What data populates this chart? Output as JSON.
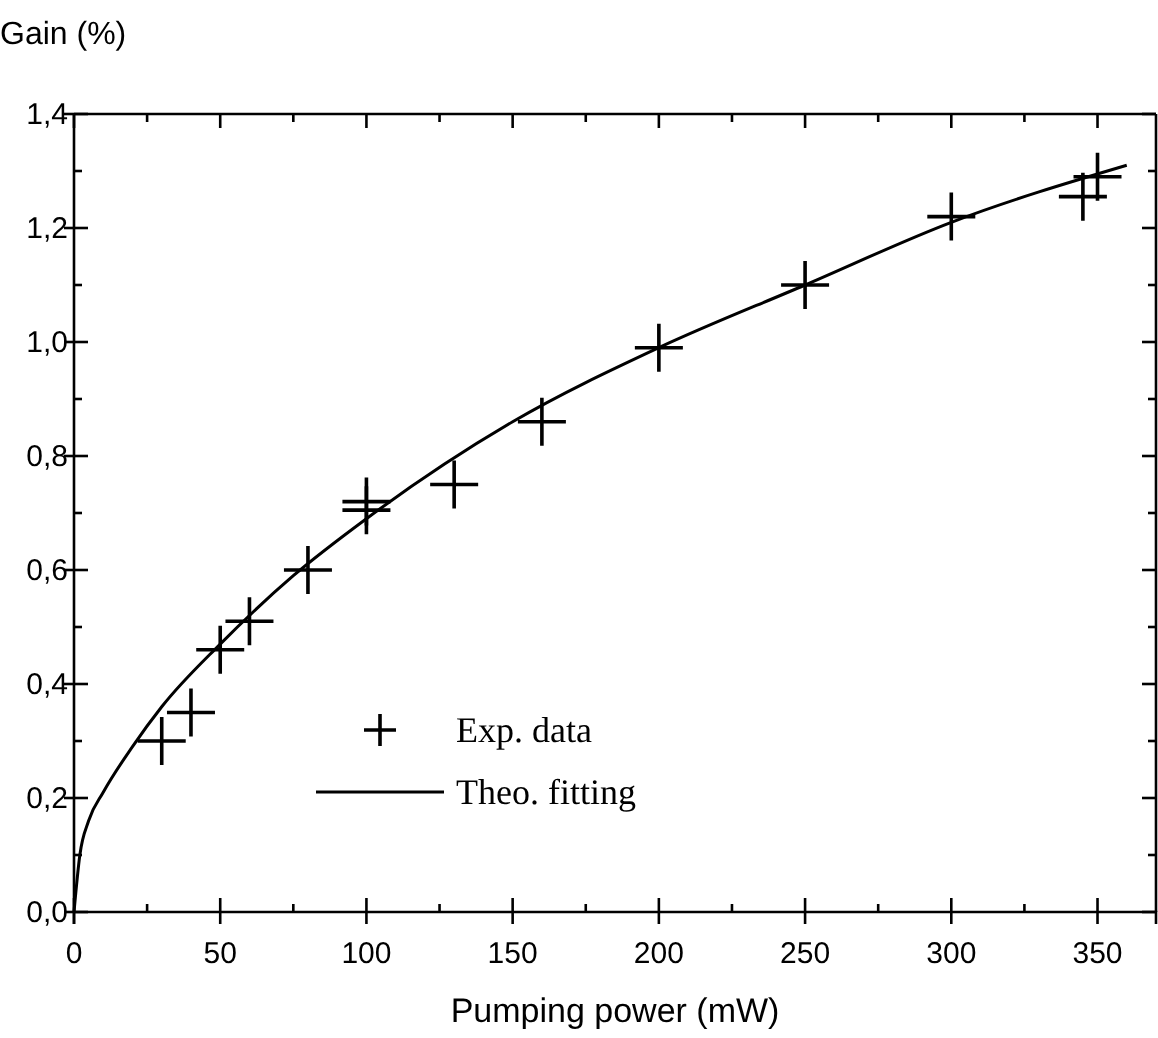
{
  "chart_data": {
    "type": "scatter",
    "ylabel": "Gain (%)",
    "xlabel": "Pumping power (mW)",
    "xlim": [
      0,
      370
    ],
    "ylim": [
      0,
      1.4
    ],
    "xticks": [
      0,
      {
        "value": 25,
        "label": null
      },
      50,
      {
        "value": 75,
        "label": null
      },
      100,
      {
        "value": 125,
        "label": null
      },
      150,
      {
        "value": 175,
        "label": null
      },
      200,
      {
        "value": 225,
        "label": null
      },
      250,
      {
        "value": 275,
        "label": null
      },
      300,
      {
        "value": 325,
        "label": null
      },
      350
    ],
    "yticks": [
      {
        "value": 0,
        "label": "0,0"
      },
      {
        "value": 0.1,
        "label": null
      },
      {
        "value": 0.2,
        "label": "0,2"
      },
      {
        "value": 0.3,
        "label": null
      },
      {
        "value": 0.4,
        "label": "0,4"
      },
      {
        "value": 0.5,
        "label": null
      },
      {
        "value": 0.6,
        "label": "0,6"
      },
      {
        "value": 0.7,
        "label": null
      },
      {
        "value": 0.8,
        "label": "0,8"
      },
      {
        "value": 0.9,
        "label": null
      },
      {
        "value": 1.0,
        "label": "1,0"
      },
      {
        "value": 1.1,
        "label": null
      },
      {
        "value": 1.2,
        "label": "1,2"
      },
      {
        "value": 1.3,
        "label": null
      },
      {
        "value": 1.4,
        "label": "1,4"
      }
    ],
    "legend": "bottom",
    "grid": false,
    "series": [
      {
        "name": "Exp. data",
        "marker": "cross",
        "color": "#000000",
        "x": [
          30,
          40,
          50,
          60,
          80,
          100,
          100,
          130,
          160,
          200,
          250,
          300,
          345,
          350
        ],
        "values": [
          0.3,
          0.35,
          0.46,
          0.51,
          0.6,
          0.72,
          0.705,
          0.75,
          0.86,
          0.99,
          1.1,
          1.22,
          1.255,
          1.29
        ]
      },
      {
        "name": "Theo. fitting",
        "type": "line",
        "color": "#000000",
        "x": [
          0,
          2,
          5,
          10,
          20,
          30,
          50,
          75,
          100,
          150,
          200,
          250,
          300,
          360
        ],
        "values": [
          0,
          0.1,
          0.16,
          0.21,
          0.29,
          0.36,
          0.47,
          0.59,
          0.69,
          0.86,
          0.99,
          1.1,
          1.21,
          1.31
        ]
      }
    ]
  }
}
